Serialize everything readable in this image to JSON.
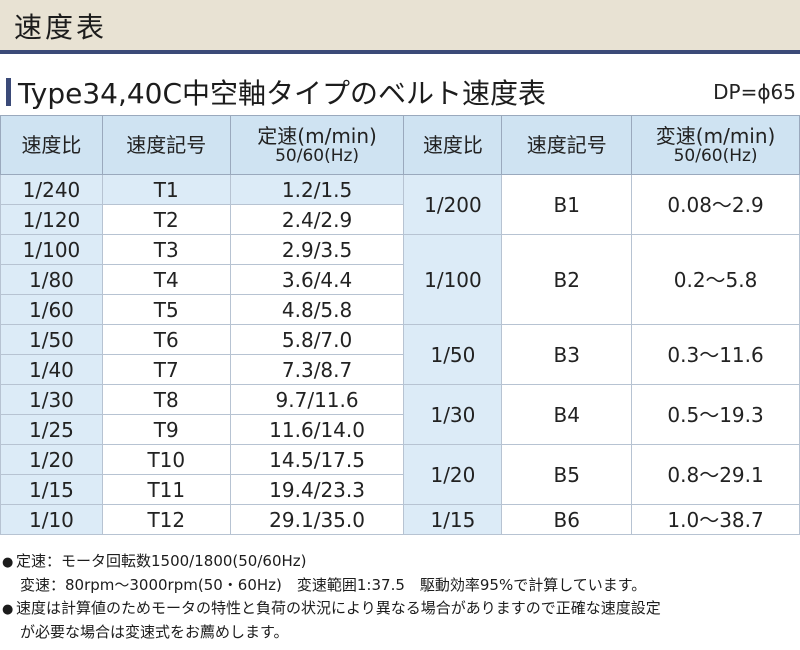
{
  "header": {
    "title": "速度表"
  },
  "section": {
    "title": "Type34,40C中空軸タイプのベルト速度表",
    "dp": "DP=ϕ65"
  },
  "table": {
    "headers": {
      "ratio_left": "速度比",
      "code_left": "速度記号",
      "speed_left": "定速(m/min)",
      "speed_left_sub": "50/60(Hz)",
      "ratio_right": "速度比",
      "code_right": "速度記号",
      "speed_right": "変速(m/min)",
      "speed_right_sub": "50/60(Hz)"
    },
    "left_rows": [
      {
        "ratio": "1/240",
        "code": "T1",
        "speed": "1.2/1.5"
      },
      {
        "ratio": "1/120",
        "code": "T2",
        "speed": "2.4/2.9"
      },
      {
        "ratio": "1/100",
        "code": "T3",
        "speed": "2.9/3.5"
      },
      {
        "ratio": "1/80",
        "code": "T4",
        "speed": "3.6/4.4"
      },
      {
        "ratio": "1/60",
        "code": "T5",
        "speed": "4.8/5.8"
      },
      {
        "ratio": "1/50",
        "code": "T6",
        "speed": "5.8/7.0"
      },
      {
        "ratio": "1/40",
        "code": "T7",
        "speed": "7.3/8.7"
      },
      {
        "ratio": "1/30",
        "code": "T8",
        "speed": "9.7/11.6"
      },
      {
        "ratio": "1/25",
        "code": "T9",
        "speed": "11.6/14.0"
      },
      {
        "ratio": "1/20",
        "code": "T10",
        "speed": "14.5/17.5"
      },
      {
        "ratio": "1/15",
        "code": "T11",
        "speed": "19.4/23.3"
      },
      {
        "ratio": "1/10",
        "code": "T12",
        "speed": "29.1/35.0"
      }
    ],
    "right_groups": [
      {
        "ratio": "1/200",
        "code": "B1",
        "speed": "0.08〜2.9"
      },
      {
        "ratio": "1/100",
        "code": "B2",
        "speed": "0.2〜5.8"
      },
      {
        "ratio": "1/50",
        "code": "B3",
        "speed": "0.3〜11.6"
      },
      {
        "ratio": "1/30",
        "code": "B4",
        "speed": "0.5〜19.3"
      },
      {
        "ratio": "1/20",
        "code": "B5",
        "speed": "0.8〜29.1"
      },
      {
        "ratio": "1/15",
        "code": "B6",
        "speed": "1.0〜38.7"
      }
    ]
  },
  "notes": {
    "bullet": "●",
    "line1": "定速：モータ回転数1500/1800(50/60Hz)",
    "line2": "変速：80rpm〜3000rpm(50・60Hz)　変速範囲1:37.5　駆動効率95%で計算しています。",
    "line3": "速度は計算値のためモータの特性と負荷の状況により異なる場合がありますので正確な速度設定",
    "line4": "が必要な場合は変速式をお薦めします。"
  },
  "colors": {
    "header_band": "#e8e2d3",
    "accent": "#3b4a78",
    "table_header": "#cfe3f2",
    "row_shade": "#dcebf7"
  }
}
